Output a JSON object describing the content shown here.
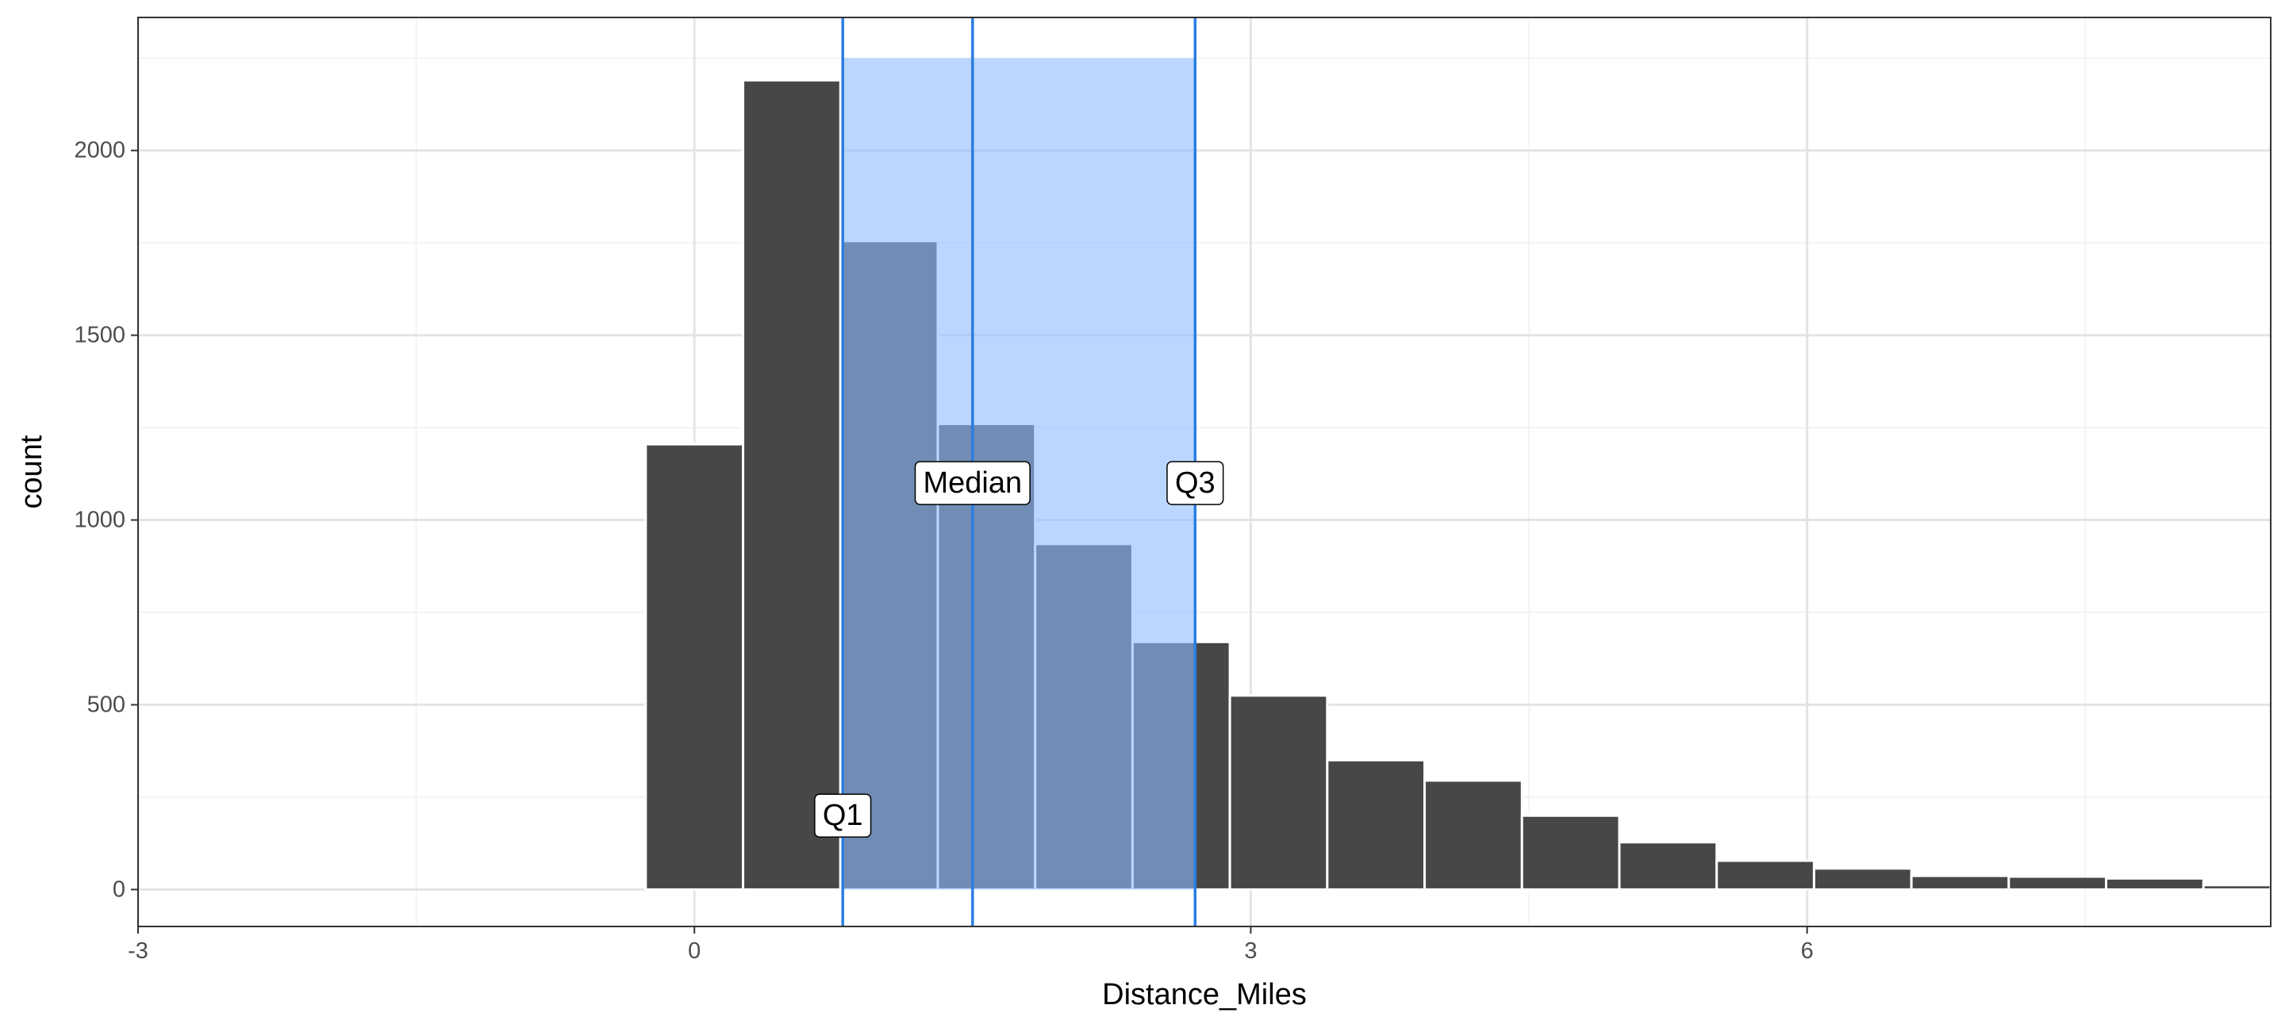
{
  "chart_data": {
    "type": "bar",
    "title": "",
    "xlabel": "Distance_Miles",
    "ylabel": "count",
    "xlim": [
      -3,
      8.5
    ],
    "ylim": [
      -100,
      2360
    ],
    "x_ticks": [
      -3,
      0,
      3,
      6
    ],
    "x_tick_labels": [
      "-3",
      "0",
      "3",
      "6"
    ],
    "y_ticks": [
      0,
      500,
      1000,
      1500,
      2000
    ],
    "y_tick_labels": [
      "0",
      "500",
      "1000",
      "1500",
      "2000"
    ],
    "grid": true,
    "bin_width": 0.525,
    "bins": [
      {
        "x": -2.1,
        "count": 0
      },
      {
        "x": -1.575,
        "count": 0
      },
      {
        "x": -1.05,
        "count": 0
      },
      {
        "x": -0.525,
        "count": 0
      },
      {
        "x": 0.0,
        "count": 1205
      },
      {
        "x": 0.525,
        "count": 2190
      },
      {
        "x": 1.05,
        "count": 1755
      },
      {
        "x": 1.575,
        "count": 1260
      },
      {
        "x": 2.1,
        "count": 935
      },
      {
        "x": 2.625,
        "count": 670
      },
      {
        "x": 3.15,
        "count": 525
      },
      {
        "x": 3.675,
        "count": 350
      },
      {
        "x": 4.2,
        "count": 295
      },
      {
        "x": 4.725,
        "count": 200
      },
      {
        "x": 5.25,
        "count": 128
      },
      {
        "x": 5.775,
        "count": 78
      },
      {
        "x": 6.3,
        "count": 57
      },
      {
        "x": 6.825,
        "count": 37
      },
      {
        "x": 7.35,
        "count": 35
      },
      {
        "x": 7.875,
        "count": 30
      },
      {
        "x": 8.4,
        "count": 12
      }
    ],
    "quartiles": {
      "q1": {
        "value": 0.8,
        "label": "Q1",
        "label_y": 200
      },
      "median": {
        "value": 1.5,
        "label": "Median",
        "label_y": 1100
      },
      "q3": {
        "value": 2.7,
        "label": "Q3",
        "label_y": 1100
      }
    },
    "iqr_band": {
      "x_from": 0.8,
      "x_to": 2.7,
      "y_to": 2250
    }
  },
  "colors": {
    "bar": "#474747",
    "band": "#8ebdff",
    "band_opacity": 0.6,
    "quartile_line": "#2a7de1",
    "grid_major": "#e4e4e4",
    "grid_minor": "#f1f1f1",
    "panel_border": "#333333"
  }
}
